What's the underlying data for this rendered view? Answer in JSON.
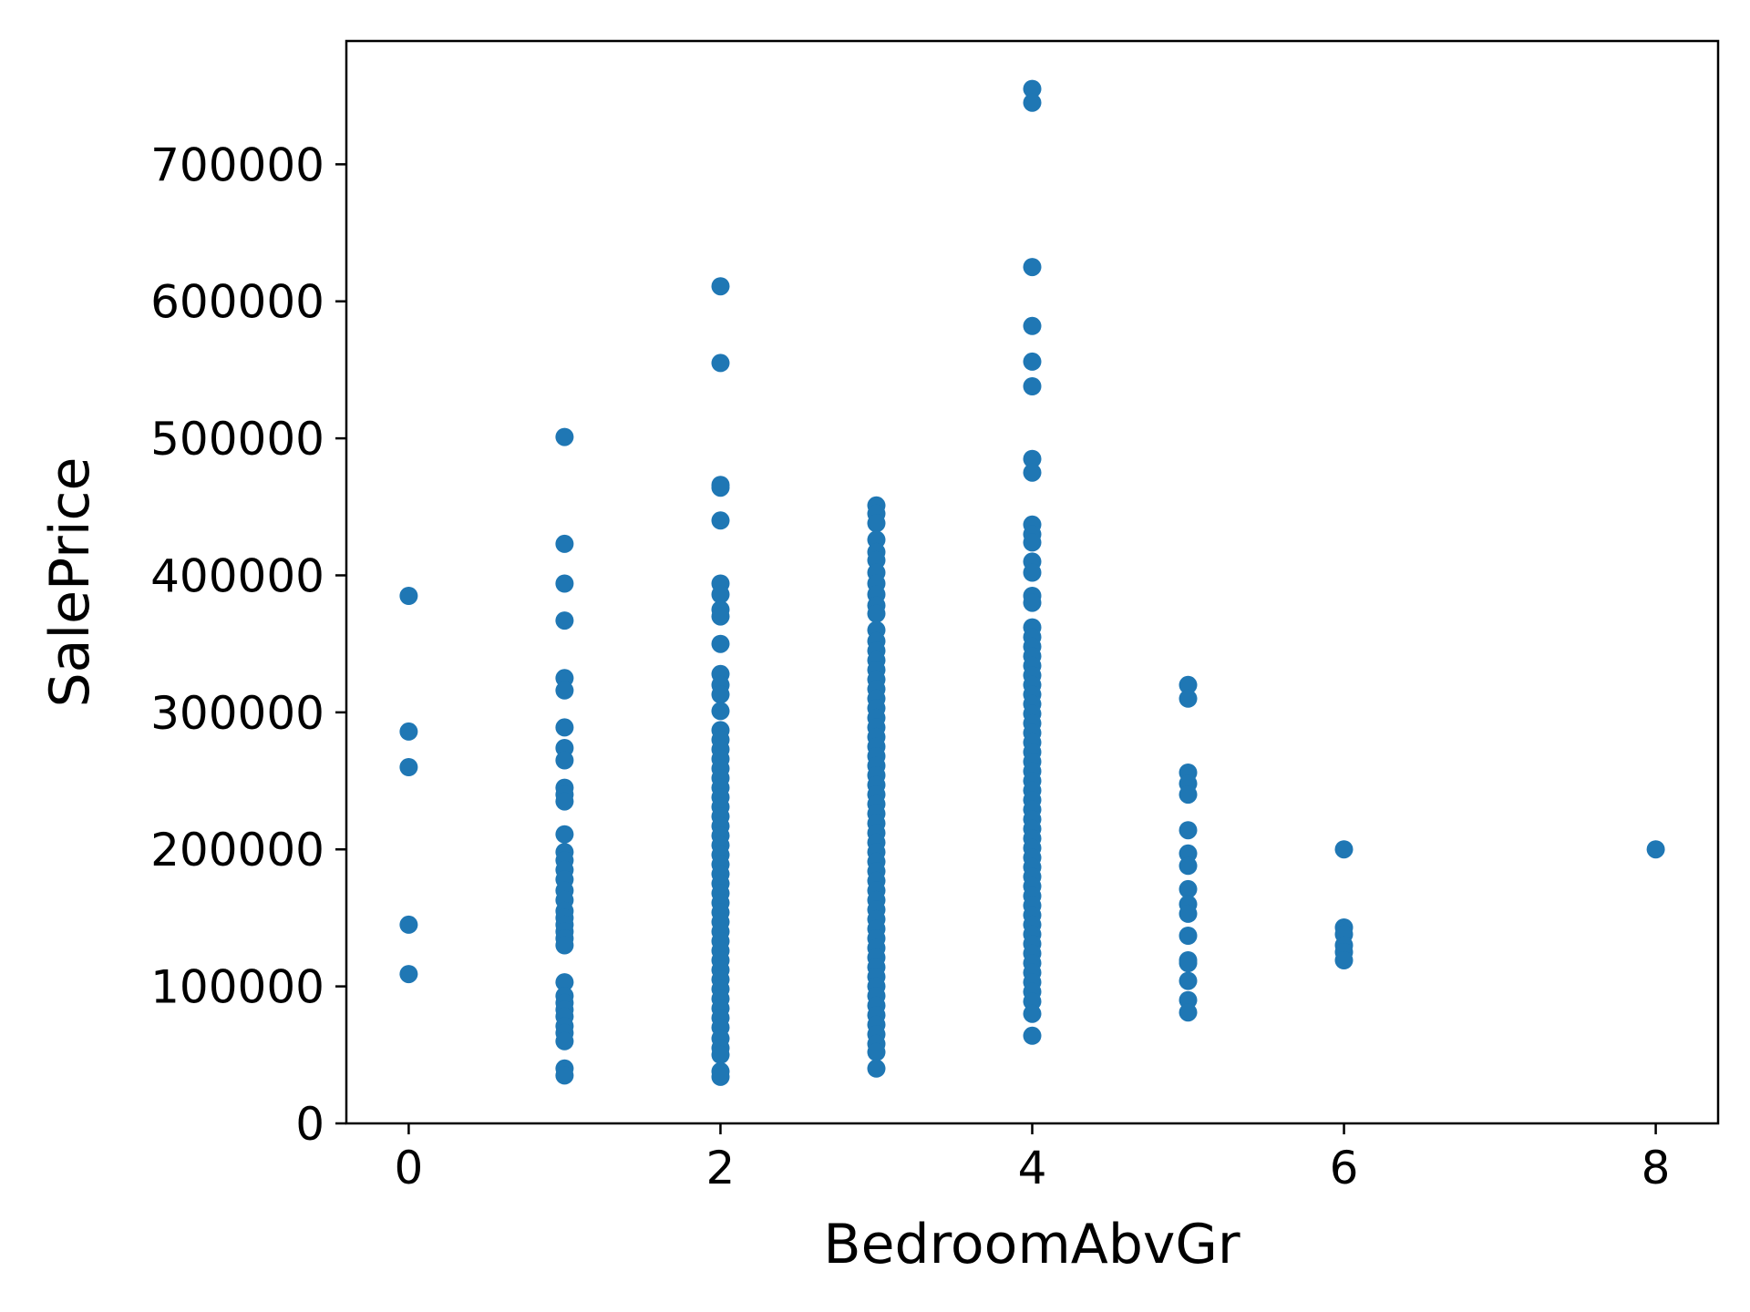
{
  "chart_data": {
    "type": "scatter",
    "xlabel": "BedroomAbvGr",
    "ylabel": "SalePrice",
    "xlim": [
      -0.4,
      8.4
    ],
    "ylim": [
      0,
      790000
    ],
    "xticks": [
      0,
      2,
      4,
      6,
      8
    ],
    "yticks": [
      0,
      100000,
      200000,
      300000,
      400000,
      500000,
      600000,
      700000
    ],
    "grid": false,
    "marker_color": "#1f77b4",
    "series": [
      {
        "points": [
          [
            0,
            385000
          ],
          [
            0,
            286000
          ],
          [
            0,
            260000
          ],
          [
            0,
            145000
          ],
          [
            0,
            109000
          ],
          [
            1,
            501000
          ],
          [
            1,
            423000
          ],
          [
            1,
            394000
          ],
          [
            1,
            367000
          ],
          [
            1,
            325000
          ],
          [
            1,
            316000
          ],
          [
            1,
            289000
          ],
          [
            1,
            274000
          ],
          [
            1,
            265000
          ],
          [
            1,
            245000
          ],
          [
            1,
            240000
          ],
          [
            1,
            235000
          ],
          [
            1,
            211000
          ],
          [
            1,
            198000
          ],
          [
            1,
            192000
          ],
          [
            1,
            185000
          ],
          [
            1,
            178000
          ],
          [
            1,
            170000
          ],
          [
            1,
            163000
          ],
          [
            1,
            155000
          ],
          [
            1,
            150000
          ],
          [
            1,
            145000
          ],
          [
            1,
            140000
          ],
          [
            1,
            135000
          ],
          [
            1,
            130000
          ],
          [
            1,
            103000
          ],
          [
            1,
            93000
          ],
          [
            1,
            88000
          ],
          [
            1,
            83000
          ],
          [
            1,
            78000
          ],
          [
            1,
            71000
          ],
          [
            1,
            66000
          ],
          [
            1,
            60000
          ],
          [
            1,
            40000
          ],
          [
            1,
            35000
          ],
          [
            2,
            611000
          ],
          [
            2,
            555000
          ],
          [
            2,
            466000
          ],
          [
            2,
            464000
          ],
          [
            2,
            440000
          ],
          [
            2,
            394000
          ],
          [
            2,
            386000
          ],
          [
            2,
            375000
          ],
          [
            2,
            370000
          ],
          [
            2,
            350000
          ],
          [
            2,
            328000
          ],
          [
            2,
            320000
          ],
          [
            2,
            313000
          ],
          [
            2,
            301000
          ],
          [
            2,
            287000
          ],
          [
            2,
            280000
          ],
          [
            2,
            273000
          ],
          [
            2,
            266000
          ],
          [
            2,
            259000
          ],
          [
            2,
            252000
          ],
          [
            2,
            245000
          ],
          [
            2,
            238000
          ],
          [
            2,
            231000
          ],
          [
            2,
            224000
          ],
          [
            2,
            217000
          ],
          [
            2,
            210000
          ],
          [
            2,
            203000
          ],
          [
            2,
            196000
          ],
          [
            2,
            189000
          ],
          [
            2,
            182000
          ],
          [
            2,
            175000
          ],
          [
            2,
            168000
          ],
          [
            2,
            161000
          ],
          [
            2,
            154000
          ],
          [
            2,
            147000
          ],
          [
            2,
            140000
          ],
          [
            2,
            133000
          ],
          [
            2,
            126000
          ],
          [
            2,
            119000
          ],
          [
            2,
            112000
          ],
          [
            2,
            105000
          ],
          [
            2,
            98000
          ],
          [
            2,
            91000
          ],
          [
            2,
            84000
          ],
          [
            2,
            77000
          ],
          [
            2,
            70000
          ],
          [
            2,
            62000
          ],
          [
            2,
            55000
          ],
          [
            2,
            50000
          ],
          [
            2,
            38000
          ],
          [
            2,
            34000
          ],
          [
            3,
            451000
          ],
          [
            3,
            445000
          ],
          [
            3,
            438000
          ],
          [
            3,
            426000
          ],
          [
            3,
            417000
          ],
          [
            3,
            411000
          ],
          [
            3,
            402000
          ],
          [
            3,
            394000
          ],
          [
            3,
            386000
          ],
          [
            3,
            378000
          ],
          [
            3,
            372000
          ],
          [
            3,
            360000
          ],
          [
            3,
            352000
          ],
          [
            3,
            345000
          ],
          [
            3,
            338000
          ],
          [
            3,
            331000
          ],
          [
            3,
            324000
          ],
          [
            3,
            317000
          ],
          [
            3,
            310000
          ],
          [
            3,
            303000
          ],
          [
            3,
            296000
          ],
          [
            3,
            289000
          ],
          [
            3,
            282000
          ],
          [
            3,
            275000
          ],
          [
            3,
            268000
          ],
          [
            3,
            261000
          ],
          [
            3,
            254000
          ],
          [
            3,
            247000
          ],
          [
            3,
            240000
          ],
          [
            3,
            233000
          ],
          [
            3,
            226000
          ],
          [
            3,
            219000
          ],
          [
            3,
            212000
          ],
          [
            3,
            205000
          ],
          [
            3,
            198000
          ],
          [
            3,
            191000
          ],
          [
            3,
            184000
          ],
          [
            3,
            177000
          ],
          [
            3,
            170000
          ],
          [
            3,
            163000
          ],
          [
            3,
            156000
          ],
          [
            3,
            149000
          ],
          [
            3,
            142000
          ],
          [
            3,
            135000
          ],
          [
            3,
            128000
          ],
          [
            3,
            121000
          ],
          [
            3,
            114000
          ],
          [
            3,
            107000
          ],
          [
            3,
            100000
          ],
          [
            3,
            93000
          ],
          [
            3,
            86000
          ],
          [
            3,
            79000
          ],
          [
            3,
            72000
          ],
          [
            3,
            65000
          ],
          [
            3,
            58000
          ],
          [
            3,
            52000
          ],
          [
            3,
            40000
          ],
          [
            4,
            755000
          ],
          [
            4,
            745000
          ],
          [
            4,
            625000
          ],
          [
            4,
            582000
          ],
          [
            4,
            556000
          ],
          [
            4,
            538000
          ],
          [
            4,
            485000
          ],
          [
            4,
            475000
          ],
          [
            4,
            437000
          ],
          [
            4,
            430000
          ],
          [
            4,
            424000
          ],
          [
            4,
            410000
          ],
          [
            4,
            402000
          ],
          [
            4,
            385000
          ],
          [
            4,
            380000
          ],
          [
            4,
            362000
          ],
          [
            4,
            355000
          ],
          [
            4,
            348000
          ],
          [
            4,
            341000
          ],
          [
            4,
            334000
          ],
          [
            4,
            327000
          ],
          [
            4,
            320000
          ],
          [
            4,
            313000
          ],
          [
            4,
            306000
          ],
          [
            4,
            299000
          ],
          [
            4,
            292000
          ],
          [
            4,
            285000
          ],
          [
            4,
            278000
          ],
          [
            4,
            271000
          ],
          [
            4,
            264000
          ],
          [
            4,
            257000
          ],
          [
            4,
            250000
          ],
          [
            4,
            243000
          ],
          [
            4,
            236000
          ],
          [
            4,
            229000
          ],
          [
            4,
            222000
          ],
          [
            4,
            215000
          ],
          [
            4,
            208000
          ],
          [
            4,
            201000
          ],
          [
            4,
            194000
          ],
          [
            4,
            187000
          ],
          [
            4,
            180000
          ],
          [
            4,
            173000
          ],
          [
            4,
            166000
          ],
          [
            4,
            159000
          ],
          [
            4,
            152000
          ],
          [
            4,
            145000
          ],
          [
            4,
            138000
          ],
          [
            4,
            131000
          ],
          [
            4,
            124000
          ],
          [
            4,
            117000
          ],
          [
            4,
            110000
          ],
          [
            4,
            103000
          ],
          [
            4,
            96000
          ],
          [
            4,
            89000
          ],
          [
            4,
            80000
          ],
          [
            4,
            64000
          ],
          [
            5,
            320000
          ],
          [
            5,
            310000
          ],
          [
            5,
            256000
          ],
          [
            5,
            248000
          ],
          [
            5,
            240000
          ],
          [
            5,
            214000
          ],
          [
            5,
            197000
          ],
          [
            5,
            188000
          ],
          [
            5,
            171000
          ],
          [
            5,
            160000
          ],
          [
            5,
            153000
          ],
          [
            5,
            137000
          ],
          [
            5,
            119000
          ],
          [
            5,
            117000
          ],
          [
            5,
            104000
          ],
          [
            5,
            90000
          ],
          [
            5,
            81000
          ],
          [
            6,
            200000
          ],
          [
            6,
            143000
          ],
          [
            6,
            138000
          ],
          [
            6,
            130000
          ],
          [
            6,
            125000
          ],
          [
            6,
            119000
          ],
          [
            8,
            200000
          ]
        ]
      }
    ]
  }
}
